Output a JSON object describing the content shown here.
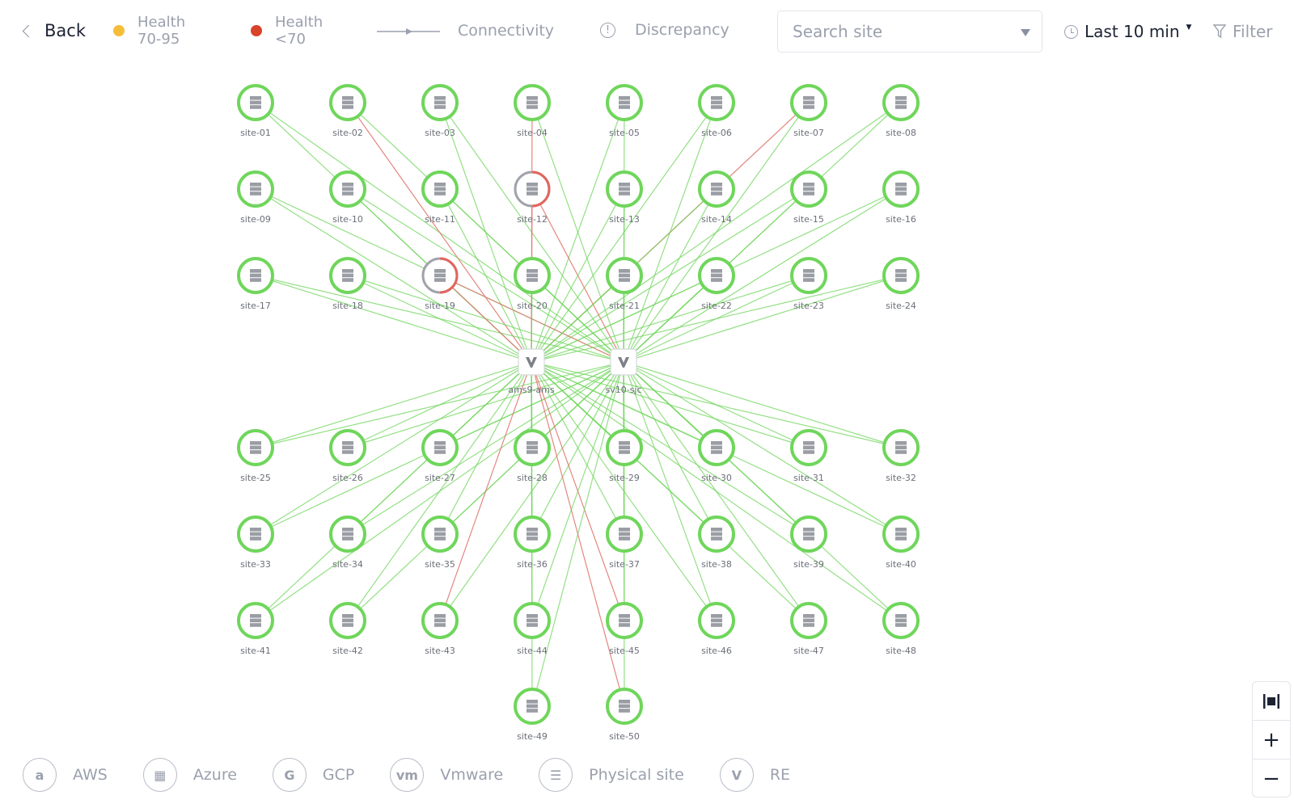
{
  "header": {
    "back_label": "Back",
    "legend": [
      {
        "label_line1": "Health",
        "label_line2": "70-95",
        "color": "#f5bd3a"
      },
      {
        "label_line1": "Health",
        "label_line2": "<70",
        "color": "#d8432a"
      }
    ],
    "connectivity_label": "Connectivity",
    "discrepancy_label": "Discrepancy",
    "search_placeholder": "Search site",
    "time_range": "Last 10 min",
    "filter_label": "Filter"
  },
  "colors": {
    "healthy": "#6fd65b",
    "degraded_link": "#e07a72",
    "degraded_ring": "#e2665e",
    "unknown_ring": "#a0a3aa"
  },
  "hubs": [
    {
      "name": "ams9-ams",
      "icon": "re-logo-icon"
    },
    {
      "name": "sv10-sjc",
      "icon": "re-logo-icon"
    }
  ],
  "sites": [
    {
      "name": "site-01",
      "health": "good"
    },
    {
      "name": "site-02",
      "health": "good"
    },
    {
      "name": "site-03",
      "health": "good"
    },
    {
      "name": "site-04",
      "health": "good"
    },
    {
      "name": "site-05",
      "health": "good"
    },
    {
      "name": "site-06",
      "health": "good"
    },
    {
      "name": "site-07",
      "health": "good"
    },
    {
      "name": "site-08",
      "health": "good"
    },
    {
      "name": "site-09",
      "health": "good"
    },
    {
      "name": "site-10",
      "health": "good"
    },
    {
      "name": "site-11",
      "health": "good"
    },
    {
      "name": "site-12",
      "health": "poor"
    },
    {
      "name": "site-13",
      "health": "good"
    },
    {
      "name": "site-14",
      "health": "good"
    },
    {
      "name": "site-15",
      "health": "good"
    },
    {
      "name": "site-16",
      "health": "good"
    },
    {
      "name": "site-17",
      "health": "good"
    },
    {
      "name": "site-18",
      "health": "good"
    },
    {
      "name": "site-19",
      "health": "poor"
    },
    {
      "name": "site-20",
      "health": "good"
    },
    {
      "name": "site-21",
      "health": "good"
    },
    {
      "name": "site-22",
      "health": "good"
    },
    {
      "name": "site-23",
      "health": "good"
    },
    {
      "name": "site-24",
      "health": "good"
    },
    {
      "name": "site-25",
      "health": "good"
    },
    {
      "name": "site-26",
      "health": "good"
    },
    {
      "name": "site-27",
      "health": "good"
    },
    {
      "name": "site-28",
      "health": "good"
    },
    {
      "name": "site-29",
      "health": "good"
    },
    {
      "name": "site-30",
      "health": "good"
    },
    {
      "name": "site-31",
      "health": "good"
    },
    {
      "name": "site-32",
      "health": "good"
    },
    {
      "name": "site-33",
      "health": "good"
    },
    {
      "name": "site-34",
      "health": "good"
    },
    {
      "name": "site-35",
      "health": "good"
    },
    {
      "name": "site-36",
      "health": "good"
    },
    {
      "name": "site-37",
      "health": "good"
    },
    {
      "name": "site-38",
      "health": "good"
    },
    {
      "name": "site-39",
      "health": "good"
    },
    {
      "name": "site-40",
      "health": "good"
    },
    {
      "name": "site-41",
      "health": "good"
    },
    {
      "name": "site-42",
      "health": "good"
    },
    {
      "name": "site-43",
      "health": "good"
    },
    {
      "name": "site-44",
      "health": "good"
    },
    {
      "name": "site-45",
      "health": "good"
    },
    {
      "name": "site-46",
      "health": "good"
    },
    {
      "name": "site-47",
      "health": "good"
    },
    {
      "name": "site-48",
      "health": "good"
    },
    {
      "name": "site-49",
      "health": "good"
    },
    {
      "name": "site-50",
      "health": "good"
    }
  ],
  "degraded_links": [
    [
      "site-02",
      "ams9-ams"
    ],
    [
      "site-04",
      "ams9-ams"
    ],
    [
      "site-07",
      "ams9-ams"
    ],
    [
      "site-12",
      "ams9-ams"
    ],
    [
      "site-12",
      "sv10-sjc"
    ],
    [
      "site-19",
      "ams9-ams"
    ],
    [
      "site-19",
      "sv10-sjc"
    ],
    [
      "site-43",
      "ams9-ams"
    ],
    [
      "site-45",
      "ams9-ams"
    ],
    [
      "site-50",
      "ams9-ams"
    ]
  ],
  "zoom_controls": {
    "fit": "fit-to-screen-icon",
    "zoom_in": "+",
    "zoom_out": "−"
  },
  "footer": [
    {
      "label": "AWS",
      "glyph": "a",
      "icon": "aws-icon"
    },
    {
      "label": "Azure",
      "glyph": "▦",
      "icon": "azure-icon"
    },
    {
      "label": "GCP",
      "glyph": "G",
      "icon": "gcp-icon"
    },
    {
      "label": "Vmware",
      "glyph": "vm",
      "icon": "vmware-icon"
    },
    {
      "label": "Physical site",
      "glyph": "☰",
      "icon": "physical-site-icon"
    },
    {
      "label": "RE",
      "glyph": "V",
      "icon": "re-icon"
    }
  ]
}
